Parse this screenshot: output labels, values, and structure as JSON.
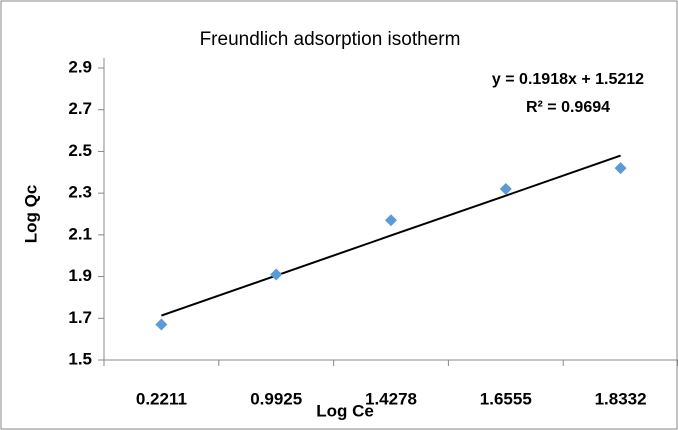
{
  "chart_data": {
    "type": "line",
    "title": "Freundlich adsorption isotherm",
    "x_label": "Log Ce",
    "y_label": "Log Qc",
    "categories": [
      "0.2211",
      "0.9925",
      "1.4278",
      "1.6555",
      "1.8332"
    ],
    "series": [
      {
        "name": "Log Qc",
        "color": "#5b9bd5",
        "values": [
          1.67,
          1.91,
          2.17,
          2.32,
          2.42
        ]
      }
    ],
    "trendline": {
      "equation": "y = 0.1918x + 1.5212",
      "r2": "R² = 0.9694",
      "color": "#000000",
      "values": [
        1.713,
        1.905,
        2.097,
        2.288,
        2.48
      ]
    },
    "ylim": [
      1.5,
      2.9
    ],
    "yticks": [
      1.5,
      1.7,
      1.9,
      2.1,
      2.3,
      2.5,
      2.7,
      2.9
    ],
    "grid": false
  }
}
